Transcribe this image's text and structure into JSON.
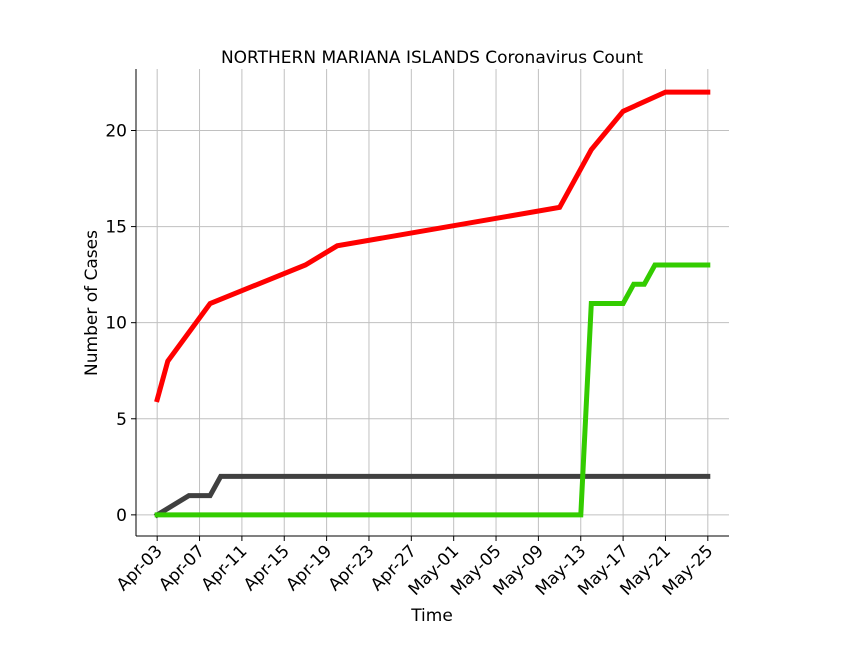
{
  "chart_data": {
    "type": "line",
    "title": "NORTHERN MARIANA ISLANDS Coronavirus Count",
    "xlabel": "Time",
    "ylabel": "Number of Cases",
    "x_tick_labels": [
      "Apr-03",
      "Apr-07",
      "Apr-11",
      "Apr-15",
      "Apr-19",
      "Apr-23",
      "Apr-27",
      "May-01",
      "May-05",
      "May-09",
      "May-13",
      "May-17",
      "May-21",
      "May-25"
    ],
    "y_ticks": [
      0,
      5,
      10,
      15,
      20
    ],
    "ylim": [
      -1.1,
      23.2
    ],
    "xlim": [
      "2020-04-01",
      "2020-05-27"
    ],
    "grid": true,
    "series": [
      {
        "color": "#ff0000",
        "points": [
          [
            "2020-04-03",
            6
          ],
          [
            "2020-04-04",
            8
          ],
          [
            "2020-04-08",
            11
          ],
          [
            "2020-04-17",
            13
          ],
          [
            "2020-04-20",
            14
          ],
          [
            "2020-05-11",
            16
          ],
          [
            "2020-05-14",
            19
          ],
          [
            "2020-05-17",
            21
          ],
          [
            "2020-05-21",
            22
          ],
          [
            "2020-05-25",
            22
          ]
        ]
      },
      {
        "color": "#404040",
        "points": [
          [
            "2020-04-03",
            0
          ],
          [
            "2020-04-06",
            1
          ],
          [
            "2020-04-08",
            1
          ],
          [
            "2020-04-09",
            2
          ],
          [
            "2020-05-25",
            2
          ]
        ]
      },
      {
        "color": "#33cc00",
        "points": [
          [
            "2020-04-03",
            0
          ],
          [
            "2020-05-13",
            0
          ],
          [
            "2020-05-14",
            11
          ],
          [
            "2020-05-17",
            11
          ],
          [
            "2020-05-18",
            12
          ],
          [
            "2020-05-19",
            12
          ],
          [
            "2020-05-20",
            13
          ],
          [
            "2020-05-25",
            13
          ]
        ]
      }
    ]
  }
}
